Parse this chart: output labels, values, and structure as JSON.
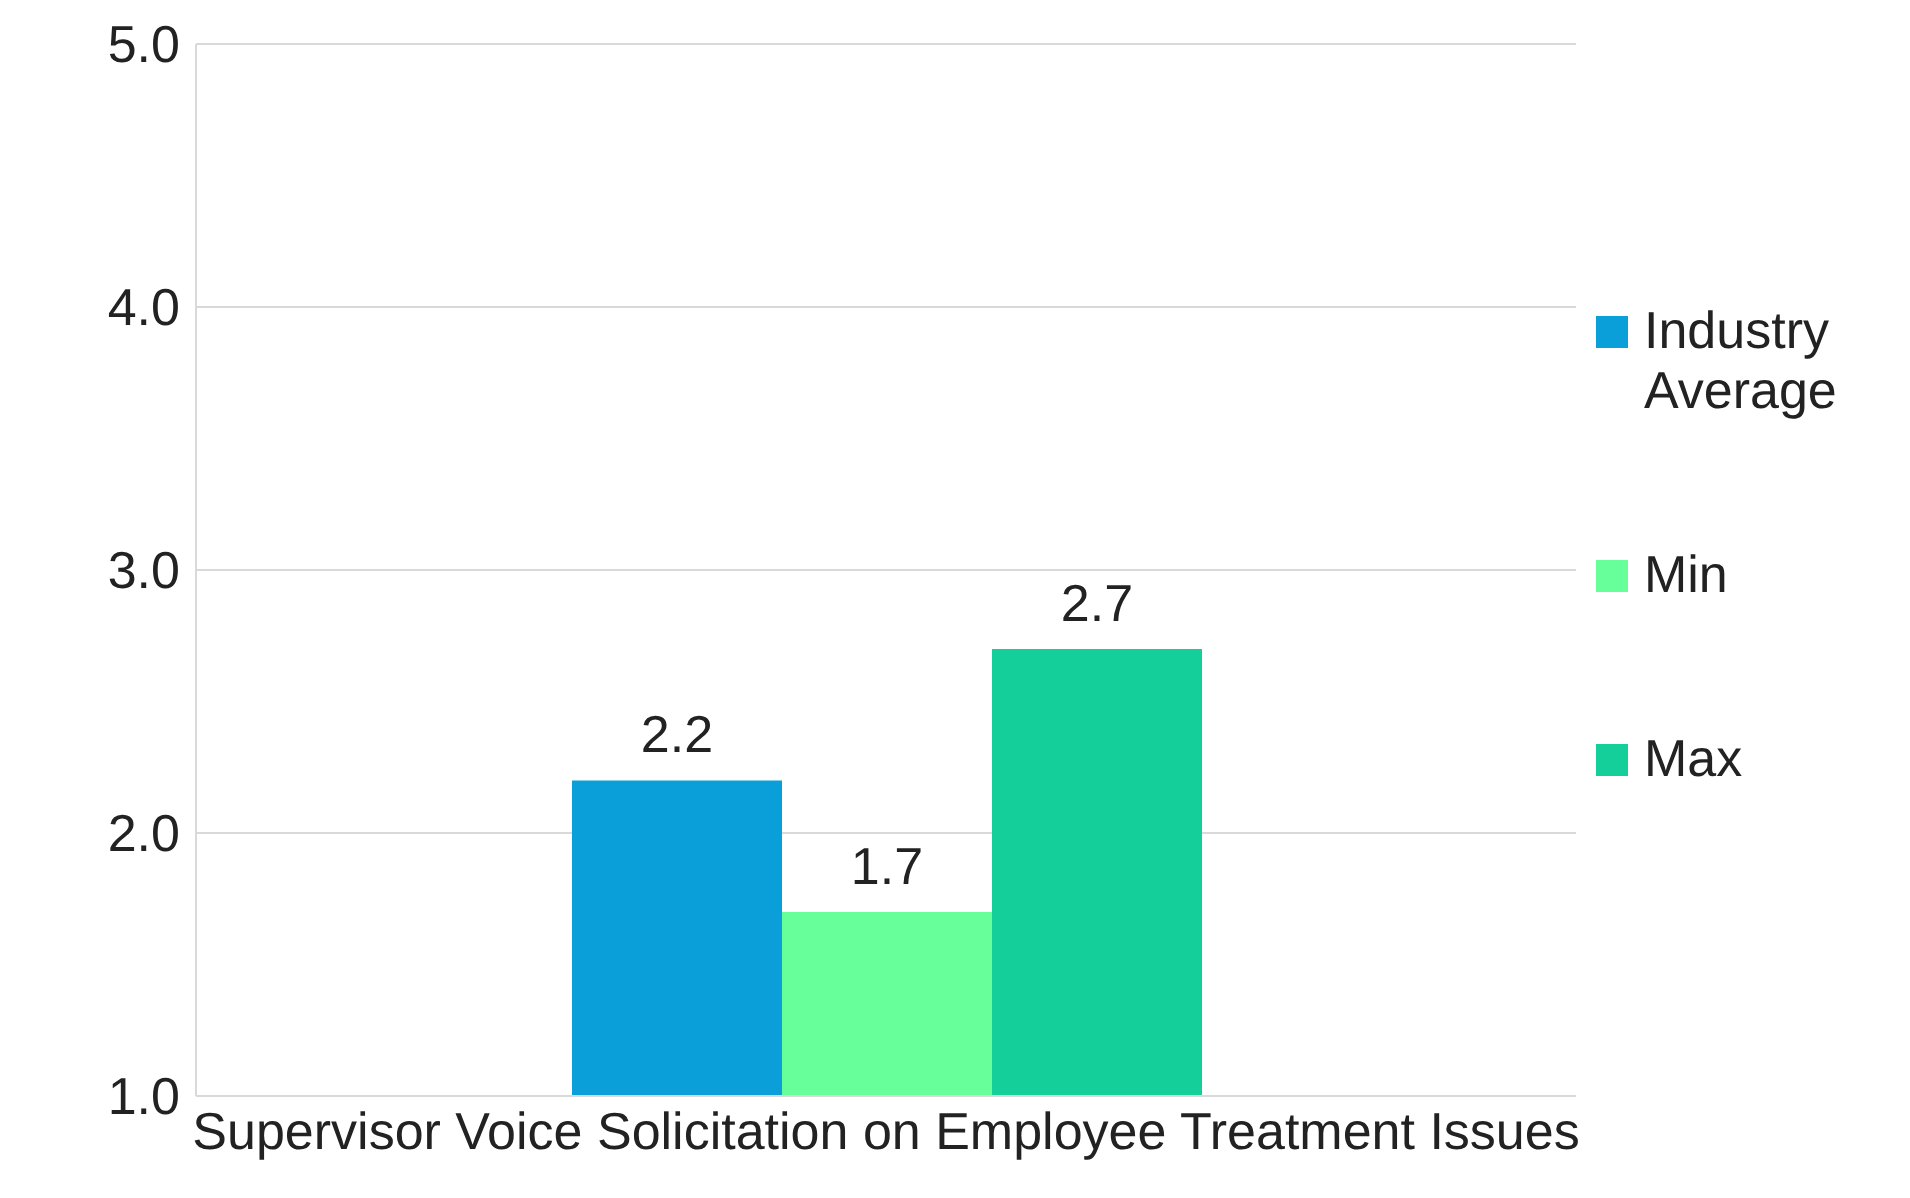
{
  "chart_data": {
    "type": "bar",
    "categories": [
      "Supervisor Voice Solicitation on Employee Treatment Issues"
    ],
    "series": [
      {
        "name": "Industry Average",
        "color": "#0a9fd8",
        "values": [
          2.2
        ]
      },
      {
        "name": "Min",
        "color": "#66ff99",
        "values": [
          1.7
        ]
      },
      {
        "name": "Max",
        "color": "#14cf9a",
        "values": [
          2.7
        ]
      }
    ],
    "ylim": [
      1,
      5
    ],
    "yticks": [
      {
        "value": 1,
        "label": "1.0"
      },
      {
        "value": 2,
        "label": "2.0"
      },
      {
        "value": 3,
        "label": "3.0"
      },
      {
        "value": 4,
        "label": "4.0"
      },
      {
        "value": 5,
        "label": "5.0"
      }
    ],
    "grid": "y",
    "legend": "right",
    "data_labels": true
  }
}
